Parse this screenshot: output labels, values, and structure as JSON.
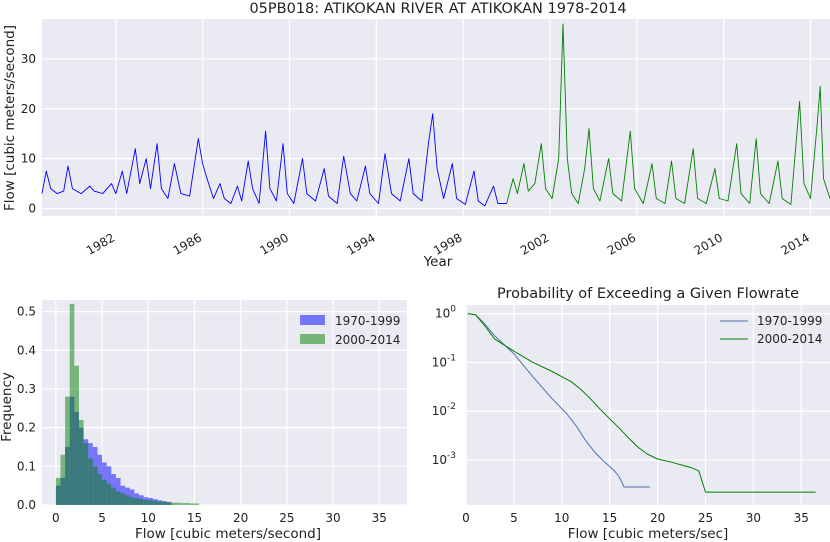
{
  "chart_data": [
    {
      "type": "line",
      "title": "05PB018: ATIKOKAN RIVER AT ATIKOKAN 1978-2014",
      "xlabel": "Year",
      "ylabel": "Flow [cubic meters/second]",
      "xlim": [
        1978.6,
        2014.9
      ],
      "ylim": [
        -1.5,
        38
      ],
      "xticks": [
        "1982",
        "1986",
        "1990",
        "1994",
        "1998",
        "2002",
        "2006",
        "2010",
        "2014"
      ],
      "yticks": [
        "0",
        "10",
        "20",
        "30"
      ],
      "grid": true,
      "series": [
        {
          "color": "#0000ff",
          "values": [
            [
              1978.6,
              3.0
            ],
            [
              1978.8,
              7.5
            ],
            [
              1979.0,
              4.0
            ],
            [
              1979.3,
              3.0
            ],
            [
              1979.6,
              3.5
            ],
            [
              1979.8,
              8.5
            ],
            [
              1980.0,
              4.0
            ],
            [
              1980.4,
              3.0
            ],
            [
              1980.8,
              4.5
            ],
            [
              1981.0,
              3.5
            ],
            [
              1981.4,
              3.0
            ],
            [
              1981.8,
              5.0
            ],
            [
              1982.0,
              3.0
            ],
            [
              1982.3,
              7.5
            ],
            [
              1982.5,
              3.0
            ],
            [
              1982.9,
              12.0
            ],
            [
              1983.1,
              5.0
            ],
            [
              1983.4,
              10.0
            ],
            [
              1983.6,
              4.0
            ],
            [
              1983.9,
              13.0
            ],
            [
              1984.1,
              4.0
            ],
            [
              1984.4,
              2.0
            ],
            [
              1984.7,
              9.0
            ],
            [
              1985.0,
              3.0
            ],
            [
              1985.4,
              2.5
            ],
            [
              1985.8,
              14.0
            ],
            [
              1986.0,
              9.0
            ],
            [
              1986.2,
              6.0
            ],
            [
              1986.5,
              2.0
            ],
            [
              1986.8,
              5.0
            ],
            [
              1987.0,
              2.0
            ],
            [
              1987.3,
              1.0
            ],
            [
              1987.6,
              4.5
            ],
            [
              1987.8,
              1.5
            ],
            [
              1988.1,
              9.5
            ],
            [
              1988.3,
              4.0
            ],
            [
              1988.6,
              1.0
            ],
            [
              1988.9,
              15.5
            ],
            [
              1989.1,
              4.0
            ],
            [
              1989.4,
              1.5
            ],
            [
              1989.7,
              13.0
            ],
            [
              1989.9,
              3.0
            ],
            [
              1990.2,
              1.0
            ],
            [
              1990.6,
              10.0
            ],
            [
              1990.8,
              3.0
            ],
            [
              1991.2,
              1.5
            ],
            [
              1991.6,
              8.0
            ],
            [
              1991.8,
              2.5
            ],
            [
              1992.2,
              1.0
            ],
            [
              1992.5,
              10.5
            ],
            [
              1992.8,
              3.0
            ],
            [
              1993.1,
              1.5
            ],
            [
              1993.5,
              8.5
            ],
            [
              1993.7,
              3.0
            ],
            [
              1994.1,
              1.0
            ],
            [
              1994.4,
              11.0
            ],
            [
              1994.7,
              3.0
            ],
            [
              1995.1,
              1.5
            ],
            [
              1995.5,
              10.0
            ],
            [
              1995.7,
              3.0
            ],
            [
              1996.1,
              1.5
            ],
            [
              1996.4,
              13.0
            ],
            [
              1996.6,
              19.0
            ],
            [
              1996.8,
              8.0
            ],
            [
              1997.1,
              2.0
            ],
            [
              1997.5,
              9.0
            ],
            [
              1997.7,
              2.0
            ],
            [
              1998.1,
              0.8
            ],
            [
              1998.5,
              7.5
            ],
            [
              1998.7,
              1.5
            ],
            [
              1999.0,
              0.5
            ],
            [
              1999.4,
              4.5
            ],
            [
              1999.6,
              1.0
            ],
            [
              2000.0,
              1.0
            ]
          ]
        },
        {
          "color": "#008000",
          "values": [
            [
              2000.0,
              1.0
            ],
            [
              2000.3,
              6.0
            ],
            [
              2000.5,
              3.0
            ],
            [
              2000.8,
              9.0
            ],
            [
              2001.0,
              3.5
            ],
            [
              2001.3,
              5.0
            ],
            [
              2001.6,
              13.0
            ],
            [
              2001.8,
              4.0
            ],
            [
              2002.1,
              2.0
            ],
            [
              2002.4,
              10.0
            ],
            [
              2002.6,
              37.0
            ],
            [
              2002.8,
              10.0
            ],
            [
              2003.0,
              3.0
            ],
            [
              2003.3,
              1.0
            ],
            [
              2003.6,
              8.0
            ],
            [
              2003.8,
              16.0
            ],
            [
              2004.0,
              4.0
            ],
            [
              2004.3,
              1.5
            ],
            [
              2004.7,
              10.0
            ],
            [
              2004.9,
              3.0
            ],
            [
              2005.3,
              1.5
            ],
            [
              2005.7,
              15.5
            ],
            [
              2005.9,
              4.0
            ],
            [
              2006.3,
              1.0
            ],
            [
              2006.7,
              9.0
            ],
            [
              2006.9,
              2.0
            ],
            [
              2007.3,
              1.0
            ],
            [
              2007.6,
              9.5
            ],
            [
              2007.8,
              2.0
            ],
            [
              2008.2,
              1.0
            ],
            [
              2008.6,
              12.0
            ],
            [
              2008.8,
              2.0
            ],
            [
              2009.2,
              1.0
            ],
            [
              2009.6,
              8.0
            ],
            [
              2009.8,
              2.0
            ],
            [
              2010.2,
              1.5
            ],
            [
              2010.6,
              13.0
            ],
            [
              2010.8,
              3.0
            ],
            [
              2011.2,
              1.0
            ],
            [
              2011.5,
              14.0
            ],
            [
              2011.7,
              3.0
            ],
            [
              2012.1,
              1.0
            ],
            [
              2012.5,
              9.5
            ],
            [
              2012.7,
              2.0
            ],
            [
              2013.1,
              0.8
            ],
            [
              2013.5,
              21.5
            ],
            [
              2013.7,
              5.0
            ],
            [
              2014.0,
              2.0
            ],
            [
              2014.3,
              16.5
            ],
            [
              2014.45,
              24.5
            ],
            [
              2014.6,
              6.0
            ],
            [
              2014.9,
              2.0
            ]
          ]
        }
      ]
    },
    {
      "type": "bar",
      "xlabel": "Flow [cubic meters/second]",
      "ylabel": "Frequency",
      "xlim": [
        -1.5,
        38
      ],
      "ylim": [
        0,
        0.53
      ],
      "xticks": [
        "0",
        "5",
        "10",
        "15",
        "20",
        "25",
        "30",
        "35"
      ],
      "yticks": [
        "0.0",
        "0.1",
        "0.2",
        "0.3",
        "0.4",
        "0.5"
      ],
      "grid": true,
      "legend_position": "top-right",
      "bin_width": 0.5,
      "series": [
        {
          "name": "1970-1999",
          "color": "#0000ff",
          "bin_start": 0.0,
          "values": [
            0.05,
            0.07,
            0.15,
            0.28,
            0.24,
            0.2,
            0.17,
            0.16,
            0.15,
            0.13,
            0.11,
            0.1,
            0.08,
            0.07,
            0.05,
            0.045,
            0.04,
            0.03,
            0.025,
            0.02,
            0.018,
            0.015,
            0.012,
            0.01,
            0.008
          ]
        },
        {
          "name": "2000-2014",
          "color": "#008000",
          "bin_start": 0.0,
          "values": [
            0.07,
            0.13,
            0.28,
            0.52,
            0.36,
            0.22,
            0.16,
            0.12,
            0.1,
            0.08,
            0.065,
            0.055,
            0.045,
            0.035,
            0.03,
            0.025,
            0.02,
            0.018,
            0.015,
            0.013,
            0.012,
            0.01,
            0.009,
            0.008,
            0.007,
            0.006,
            0.006,
            0.005,
            0.005,
            0.004,
            0.004
          ]
        }
      ]
    },
    {
      "type": "line",
      "title": "Probability of Exceeding a Given Flowrate",
      "xlabel": "Flow [cubic meters/sec]",
      "ylabel": "",
      "yscale": "log",
      "xlim": [
        0,
        38
      ],
      "ylim": [
        0.00012,
        1.5
      ],
      "xticks": [
        "0",
        "5",
        "10",
        "15",
        "20",
        "25",
        "30",
        "35"
      ],
      "yticks": [
        "10^0",
        "10^-1",
        "10^-2",
        "10^-3"
      ],
      "grid": true,
      "legend_position": "top-right",
      "series": [
        {
          "name": "1970-1999",
          "color": "#4c72b0",
          "values": [
            [
              0.2,
              1.0
            ],
            [
              1.0,
              0.95
            ],
            [
              2.0,
              0.6
            ],
            [
              3.0,
              0.35
            ],
            [
              5.0,
              0.15
            ],
            [
              7.0,
              0.05
            ],
            [
              9.0,
              0.018
            ],
            [
              10.5,
              0.009
            ],
            [
              11.5,
              0.005
            ],
            [
              12.5,
              0.0025
            ],
            [
              13.5,
              0.0014
            ],
            [
              14.5,
              0.0009
            ],
            [
              15.5,
              0.0006
            ],
            [
              16.0,
              0.00045
            ],
            [
              16.5,
              0.00028
            ],
            [
              19.2,
              0.00028
            ]
          ]
        },
        {
          "name": "2000-2014",
          "color": "#008000",
          "values": [
            [
              0.2,
              1.0
            ],
            [
              1.0,
              0.95
            ],
            [
              2.0,
              0.55
            ],
            [
              3.0,
              0.3
            ],
            [
              5.0,
              0.17
            ],
            [
              7.0,
              0.1
            ],
            [
              9.0,
              0.065
            ],
            [
              11.0,
              0.04
            ],
            [
              12.0,
              0.028
            ],
            [
              13.0,
              0.018
            ],
            [
              14.0,
              0.011
            ],
            [
              15.0,
              0.007
            ],
            [
              16.0,
              0.0045
            ],
            [
              17.0,
              0.0028
            ],
            [
              18.0,
              0.0018
            ],
            [
              19.0,
              0.0013
            ],
            [
              20.0,
              0.00105
            ],
            [
              21.5,
              0.0009
            ],
            [
              23.5,
              0.0007
            ],
            [
              24.3,
              0.0006
            ],
            [
              25.0,
              0.00022
            ],
            [
              36.5,
              0.00022
            ]
          ]
        }
      ]
    }
  ]
}
